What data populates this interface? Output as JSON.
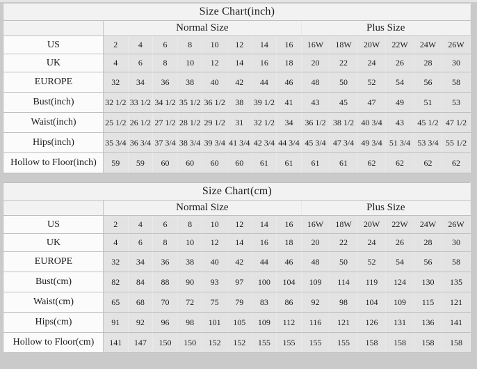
{
  "page": {
    "background_color": "#cacaca",
    "header_bg_color": "#f2f2f2",
    "label_bg_color": "#fbfbfb",
    "cell_bg_color": "#e3e3e3"
  },
  "chart_data": [
    {
      "type": "table",
      "title": "Size Chart(inch)",
      "group_headers": [
        {
          "label": "Normal Size",
          "span": 8
        },
        {
          "label": "Plus Size",
          "span": 6
        }
      ],
      "rows": [
        {
          "label": "US",
          "values": [
            "2",
            "4",
            "6",
            "8",
            "10",
            "12",
            "14",
            "16",
            "16W",
            "18W",
            "20W",
            "22W",
            "24W",
            "26W"
          ]
        },
        {
          "label": "UK",
          "values": [
            "4",
            "6",
            "8",
            "10",
            "12",
            "14",
            "16",
            "18",
            "20",
            "22",
            "24",
            "26",
            "28",
            "30"
          ]
        },
        {
          "label": "EUROPE",
          "values": [
            "32",
            "34",
            "36",
            "38",
            "40",
            "42",
            "44",
            "46",
            "48",
            "50",
            "52",
            "54",
            "56",
            "58"
          ]
        },
        {
          "label": "Bust(inch)",
          "values": [
            "32 1/2",
            "33 1/2",
            "34 1/2",
            "35 1/2",
            "36 1/2",
            "38",
            "39 1/2",
            "41",
            "43",
            "45",
            "47",
            "49",
            "51",
            "53"
          ]
        },
        {
          "label": "Waist(inch)",
          "values": [
            "25 1/2",
            "26 1/2",
            "27 1/2",
            "28 1/2",
            "29 1/2",
            "31",
            "32 1/2",
            "34",
            "36 1/2",
            "38 1/2",
            "40 3/4",
            "43",
            "45 1/2",
            "47 1/2"
          ]
        },
        {
          "label": "Hips(inch)",
          "values": [
            "35 3/4",
            "36 3/4",
            "37 3/4",
            "38 3/4",
            "39 3/4",
            "41 3/4",
            "42 3/4",
            "44 3/4",
            "45 3/4",
            "47 3/4",
            "49 3/4",
            "51 3/4",
            "53 3/4",
            "55 1/2"
          ]
        },
        {
          "label": "Hollow to Floor(inch)",
          "values": [
            "59",
            "59",
            "60",
            "60",
            "60",
            "60",
            "61",
            "61",
            "61",
            "61",
            "62",
            "62",
            "62",
            "62"
          ]
        }
      ]
    },
    {
      "type": "table",
      "title": "Size Chart(cm)",
      "group_headers": [
        {
          "label": "Normal Size",
          "span": 8
        },
        {
          "label": "Plus Size",
          "span": 6
        }
      ],
      "rows": [
        {
          "label": "US",
          "values": [
            "2",
            "4",
            "6",
            "8",
            "10",
            "12",
            "14",
            "16",
            "16W",
            "18W",
            "20W",
            "22W",
            "24W",
            "26W"
          ]
        },
        {
          "label": "UK",
          "values": [
            "4",
            "6",
            "8",
            "10",
            "12",
            "14",
            "16",
            "18",
            "20",
            "22",
            "24",
            "26",
            "28",
            "30"
          ]
        },
        {
          "label": "EUROPE",
          "values": [
            "32",
            "34",
            "36",
            "38",
            "40",
            "42",
            "44",
            "46",
            "48",
            "50",
            "52",
            "54",
            "56",
            "58"
          ]
        },
        {
          "label": "Bust(cm)",
          "values": [
            "82",
            "84",
            "88",
            "90",
            "93",
            "97",
            "100",
            "104",
            "109",
            "114",
            "119",
            "124",
            "130",
            "135"
          ]
        },
        {
          "label": "Waist(cm)",
          "values": [
            "65",
            "68",
            "70",
            "72",
            "75",
            "79",
            "83",
            "86",
            "92",
            "98",
            "104",
            "109",
            "115",
            "121"
          ]
        },
        {
          "label": "Hips(cm)",
          "values": [
            "91",
            "92",
            "96",
            "98",
            "101",
            "105",
            "109",
            "112",
            "116",
            "121",
            "126",
            "131",
            "136",
            "141"
          ]
        },
        {
          "label": "Hollow to Floor(cm)",
          "values": [
            "141",
            "147",
            "150",
            "150",
            "152",
            "152",
            "155",
            "155",
            "155",
            "155",
            "158",
            "158",
            "158",
            "158"
          ]
        }
      ]
    }
  ]
}
